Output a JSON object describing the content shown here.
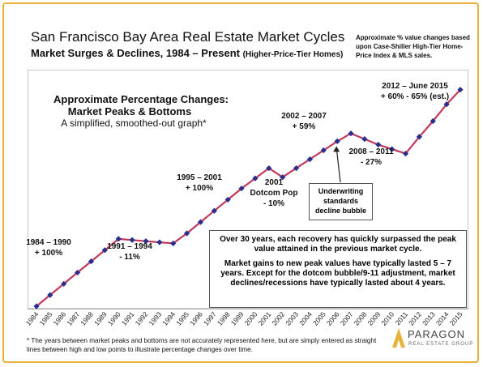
{
  "title": "San Francisco Bay Area Real Estate Market Cycles",
  "subtitle": "Market Surges & Declines, 1984 – Present",
  "subtitle_note": "(Higher-Price-Tier Homes)",
  "source_note": "Approximate % value changes based upon Case-Shiller High-Tier Home-Price Index & MLS sales.",
  "box_title_line1": "Approximate Percentage Changes:",
  "box_title_line2": "Market Peaks & Bottoms",
  "box_subtitle": "A simplified, smoothed-out graph*",
  "annotations": [
    {
      "line1": "1984 – 1990",
      "line2": "+ 100%"
    },
    {
      "line1": "1991 – 1994",
      "line2": "- 11%"
    },
    {
      "line1": "1995 – 2001",
      "line2": "+ 100%"
    },
    {
      "line1": "2001",
      "line2": "Dotcom Pop",
      "line3": "- 10%"
    },
    {
      "line1": "2002 – 2007",
      "line2": "+ 59%"
    },
    {
      "line1": "2008 – 2011",
      "line2": "- 27%"
    },
    {
      "line1": "2012 – June 2015",
      "line2": "+ 60% - 65% (est.)"
    }
  ],
  "underwriting_note": {
    "line1": "Underwriting",
    "line2": "standards",
    "line3": "decline bubble"
  },
  "info_text_1": "Over 30 years, each recovery has quickly surpassed the peak value attained in the previous market cycle.",
  "info_text_2": "Market gains to new peak values have typically lasted 5 – 7 years. Except for the dotcom bubble/9-11 adjustment, market declines/recessions have typically lasted about 4 years.",
  "footnote": "* The years between market peaks and bottoms are not accurately represented here, but are simply entered as straight lines between high and low points to illustrate percentage changes over time.",
  "logo": {
    "name": "PARAGON",
    "tagline": "REAL ESTATE GROUP"
  },
  "colors": {
    "frame": "#e8b23a",
    "line": "#c0395b",
    "marker": "#2a2f8f",
    "logo": "#e8b23a"
  },
  "chart_data": {
    "type": "line",
    "x": [
      1984,
      1985,
      1986,
      1987,
      1988,
      1989,
      1990,
      1991,
      1992,
      1993,
      1994,
      1995,
      1996,
      1997,
      1998,
      1999,
      2000,
      2001,
      2002,
      2003,
      2004,
      2005,
      2006,
      2007,
      2008,
      2009,
      2010,
      2011,
      2012,
      2013,
      2014,
      2015
    ],
    "values": [
      0,
      10,
      20,
      30,
      40,
      50,
      60,
      59,
      58,
      57,
      56,
      65,
      75,
      85,
      95,
      105,
      114,
      123,
      115,
      123,
      131,
      139,
      147,
      154,
      149,
      144,
      140,
      136,
      151,
      165,
      180,
      193
    ],
    "value_unit": "relative value index (unlabeled axis)",
    "ylim": [
      0,
      200
    ],
    "xlabel": "",
    "ylabel": "",
    "grid": false,
    "legend": "none"
  }
}
